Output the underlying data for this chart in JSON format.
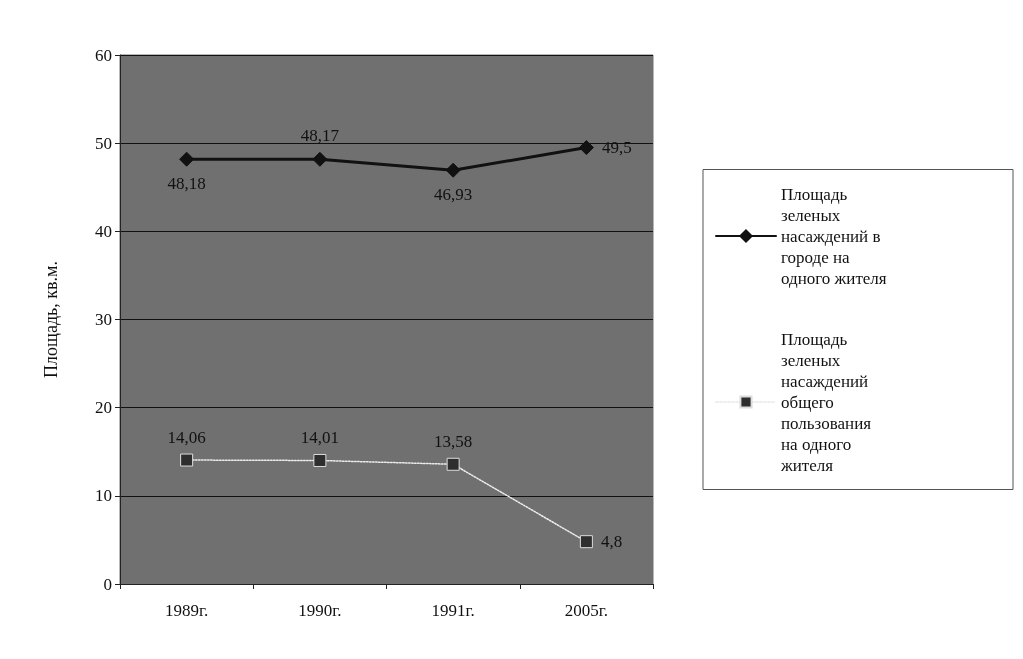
{
  "chart_data": {
    "type": "line",
    "ylabel": "Площадь, кв.м.",
    "categories": [
      "1989г.",
      "1990г.",
      "1991г.",
      "2005г."
    ],
    "series": [
      {
        "name": "Площадь зеленых насаждений в городе на одного жителя",
        "color": "#111111",
        "marker": "diamond",
        "line_style": "solid",
        "values": [
          48.18,
          48.17,
          46.93,
          49.5
        ],
        "value_labels": [
          "48,18",
          "48,17",
          "46,93",
          "49,5"
        ]
      },
      {
        "name": "Площадь зеленых насаждений общего пользования на одного жителя",
        "color": "#2e2e2e",
        "marker": "square",
        "line_style": "dotted",
        "values": [
          14.06,
          14.01,
          13.58,
          4.8
        ],
        "value_labels": [
          "14,06",
          "14,01",
          "13,58",
          "4,8"
        ]
      }
    ],
    "ylim": [
      0,
      60
    ],
    "yticks": [
      0,
      10,
      20,
      30,
      40,
      50,
      60
    ],
    "grid": "y",
    "legend": "right"
  }
}
